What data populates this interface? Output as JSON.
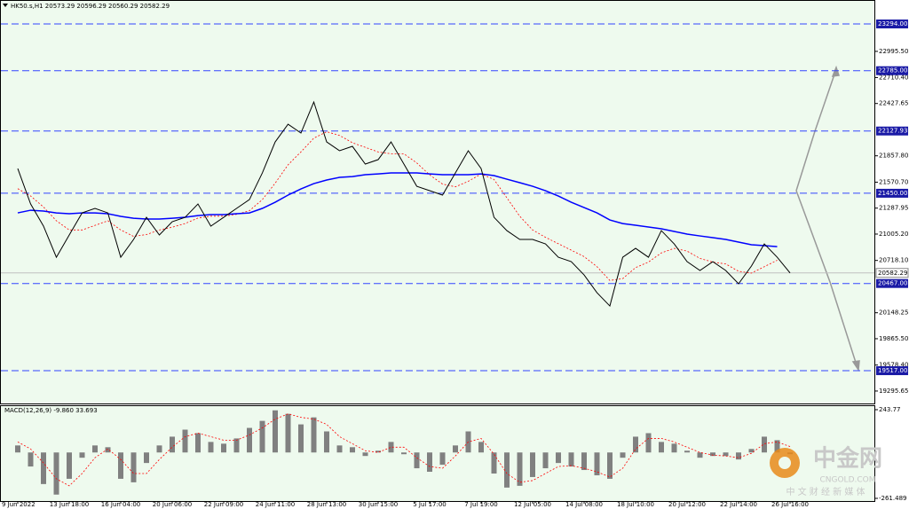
{
  "chart_data": [
    {
      "type": "line",
      "title": "HK50.s,H1  20573.29 20596.29 20560.29 20582.29",
      "categories": [
        "9 Jun 2022",
        null,
        null,
        null,
        "13 Jun 18:00",
        null,
        null,
        null,
        "16 Jun 04:00",
        null,
        null,
        null,
        "20 Jun 06:00",
        null,
        null,
        null,
        "22 Jun 09:00",
        null,
        null,
        null,
        "24 Jun 11:00",
        null,
        null,
        null,
        "28 Jun 13:00",
        null,
        null,
        null,
        "30 Jun 15:00",
        null,
        null,
        null,
        "5 Jul 17:00",
        null,
        null,
        null,
        "7 Jul 19:00",
        null,
        null,
        null,
        "12 Jul 05:00",
        null,
        null,
        null,
        "14 Jul 08:00",
        null,
        null,
        null,
        "18 Jul 10:00",
        null,
        null,
        null,
        "20 Jul 12:00",
        null,
        null,
        null,
        "22 Jul 14:00",
        null,
        null,
        null,
        "26 Jul 16:00"
      ],
      "series": [
        {
          "color": "#000000",
          "values": [
            21719,
            21333,
            21092,
            20753,
            20995,
            21236,
            21285,
            21236,
            20753,
            20947,
            21188,
            20995,
            21140,
            21188,
            21333,
            21092,
            21188,
            21285,
            21381,
            21671,
            22009,
            22202,
            22106,
            22444,
            22009,
            21913,
            21961,
            21768,
            21816,
            22009,
            21768,
            21526,
            21478,
            21430,
            21671,
            21913,
            21719,
            21188,
            21043,
            20947,
            20947,
            20898,
            20753,
            20705,
            20560,
            20367,
            20222,
            20753,
            20850,
            20753,
            21043,
            20898,
            20705,
            20609,
            20705,
            20609,
            20464,
            20657,
            20898,
            20753,
            20582.29
          ]
        },
        {
          "color": "#0000ff",
          "values": [
            21236,
            21265,
            21256,
            21236,
            21227,
            21236,
            21236,
            21227,
            21198,
            21178,
            21169,
            21169,
            21178,
            21188,
            21207,
            21217,
            21217,
            21227,
            21236,
            21285,
            21352,
            21430,
            21497,
            21555,
            21594,
            21623,
            21632,
            21652,
            21661,
            21671,
            21671,
            21671,
            21661,
            21652,
            21652,
            21652,
            21661,
            21642,
            21603,
            21565,
            21526,
            21478,
            21420,
            21352,
            21294,
            21236,
            21159,
            21120,
            21101,
            21082,
            21063,
            21034,
            21005,
            20985,
            20966,
            20947,
            20918,
            20889,
            20879,
            20869,
            null
          ]
        },
        {
          "color": "#ff0000",
          "values": [
            21500,
            21420,
            21300,
            21150,
            21050,
            21050,
            21100,
            21150,
            21050,
            20980,
            21000,
            21050,
            21080,
            21120,
            21180,
            21200,
            21200,
            21220,
            21260,
            21380,
            21560,
            21760,
            21900,
            22050,
            22120,
            22080,
            22000,
            21950,
            21900,
            21880,
            21880,
            21780,
            21650,
            21550,
            21520,
            21580,
            21660,
            21600,
            21400,
            21200,
            21050,
            20970,
            20900,
            20830,
            20760,
            20650,
            20500,
            20520,
            20640,
            20700,
            20800,
            20850,
            20820,
            20740,
            20700,
            20680,
            20600,
            20580,
            20650,
            20720,
            null
          ]
        }
      ],
      "ylim": [
        19160,
        23526
      ],
      "yticks": [
        {
          "value": 22995.5,
          "label": "22995.50"
        },
        {
          "value": 22710.4,
          "label": "22710.40"
        },
        {
          "value": 22427.65,
          "label": "22427.65"
        },
        {
          "value": 21857.8,
          "label": "21857.80"
        },
        {
          "value": 21570.7,
          "label": "21570.70"
        },
        {
          "value": 21287.95,
          "label": "21287.95"
        },
        {
          "value": 21005.2,
          "label": "21005.20"
        },
        {
          "value": 20718.1,
          "label": "20718.10"
        },
        {
          "value": 20148.25,
          "label": "20148.25"
        },
        {
          "value": 19865.5,
          "label": "19865.50"
        },
        {
          "value": 19578.4,
          "label": "19578.40"
        },
        {
          "value": 19295.65,
          "label": "19295.65"
        }
      ],
      "levels": [
        {
          "value": 23294,
          "label": "23294.00"
        },
        {
          "value": 22785,
          "label": "22785.00"
        },
        {
          "value": 22127.93,
          "label": "22127.93"
        },
        {
          "value": 21450,
          "label": "21450.00"
        },
        {
          "value": 20467,
          "label": "20467.00"
        },
        {
          "value": 19517,
          "label": "19517.00"
        }
      ],
      "price": {
        "value": 20582.29,
        "label": "20582.29"
      }
    },
    {
      "type": "bar",
      "title": "MACD(12,26,9) -9.860 33.693",
      "color": "#808080",
      "values": [
        40,
        -80,
        -180,
        -240,
        -150,
        -30,
        40,
        30,
        -150,
        -170,
        -60,
        40,
        90,
        130,
        110,
        60,
        50,
        80,
        140,
        180,
        240,
        220,
        160,
        200,
        120,
        40,
        30,
        -20,
        10,
        60,
        -10,
        -90,
        -110,
        -70,
        40,
        120,
        60,
        -120,
        -200,
        -190,
        -140,
        -90,
        -60,
        -80,
        -100,
        -130,
        -150,
        -30,
        90,
        110,
        60,
        50,
        10,
        -30,
        -20,
        -20,
        -40,
        20,
        90,
        70,
        -9.86
      ],
      "series": [
        {
          "color": "#ff0000",
          "values": [
            60,
            20,
            -60,
            -150,
            -190,
            -120,
            -30,
            20,
            -40,
            -120,
            -120,
            -40,
            30,
            90,
            110,
            90,
            70,
            70,
            100,
            140,
            190,
            220,
            200,
            190,
            160,
            90,
            50,
            10,
            0,
            30,
            30,
            -30,
            -80,
            -90,
            -20,
            60,
            80,
            -10,
            -120,
            -170,
            -160,
            -120,
            -80,
            -75,
            -90,
            -110,
            -140,
            -90,
            20,
            80,
            80,
            60,
            30,
            0,
            -15,
            -20,
            -30,
            -5,
            50,
            60,
            33.693
          ]
        }
      ],
      "ylim": [
        -261.489,
        243.77
      ],
      "yticks": [
        243.77,
        -261.489
      ]
    }
  ],
  "watermark": {
    "brand": "中金网",
    "site": "CNGOLD.COM",
    "slogan": "中 文 财 经 新 媒 体"
  }
}
